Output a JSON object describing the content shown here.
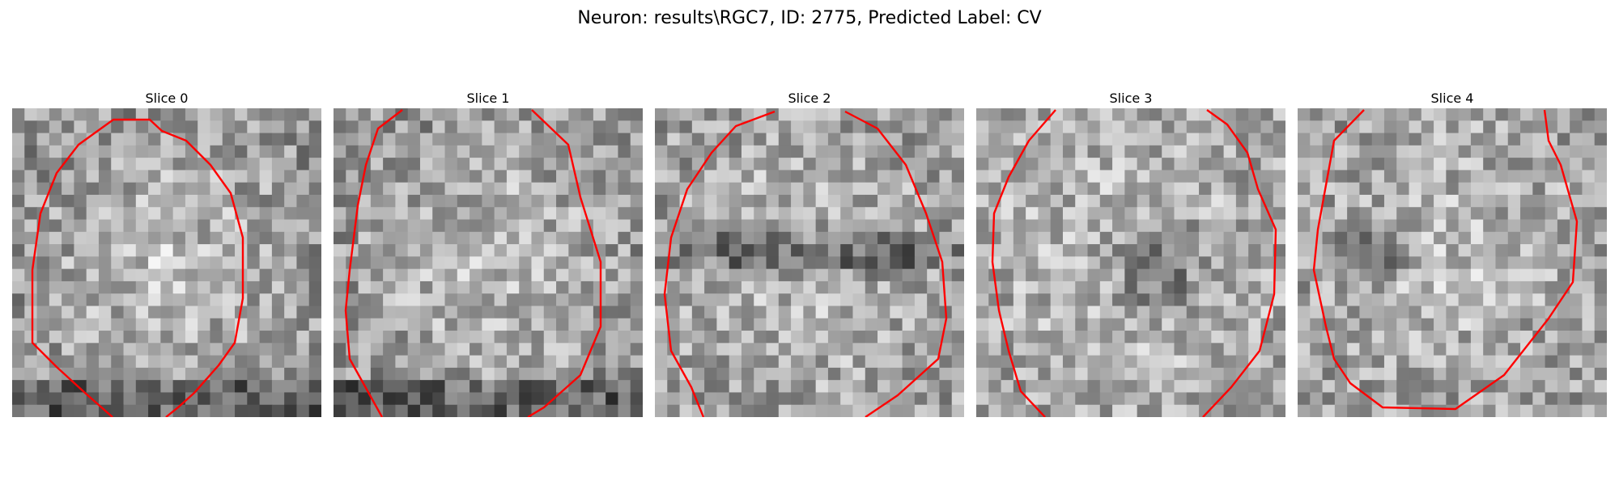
{
  "figure": {
    "title": "Neuron: results\\RGC7, ID: 2775, Predicted Label: CV"
  },
  "slices": [
    {
      "title": "Slice 0",
      "pattern": "bright-oval"
    },
    {
      "title": "Slice 1",
      "pattern": "bright-oval"
    },
    {
      "title": "Slice 2",
      "pattern": "bright-ring-dark-band"
    },
    {
      "title": "Slice 3",
      "pattern": "bright-ring-dark-center"
    },
    {
      "title": "Slice 4",
      "pattern": "bright-ring-dark-spot"
    }
  ],
  "style": {
    "contour_color": "#ff0000",
    "colormap": "gray"
  }
}
